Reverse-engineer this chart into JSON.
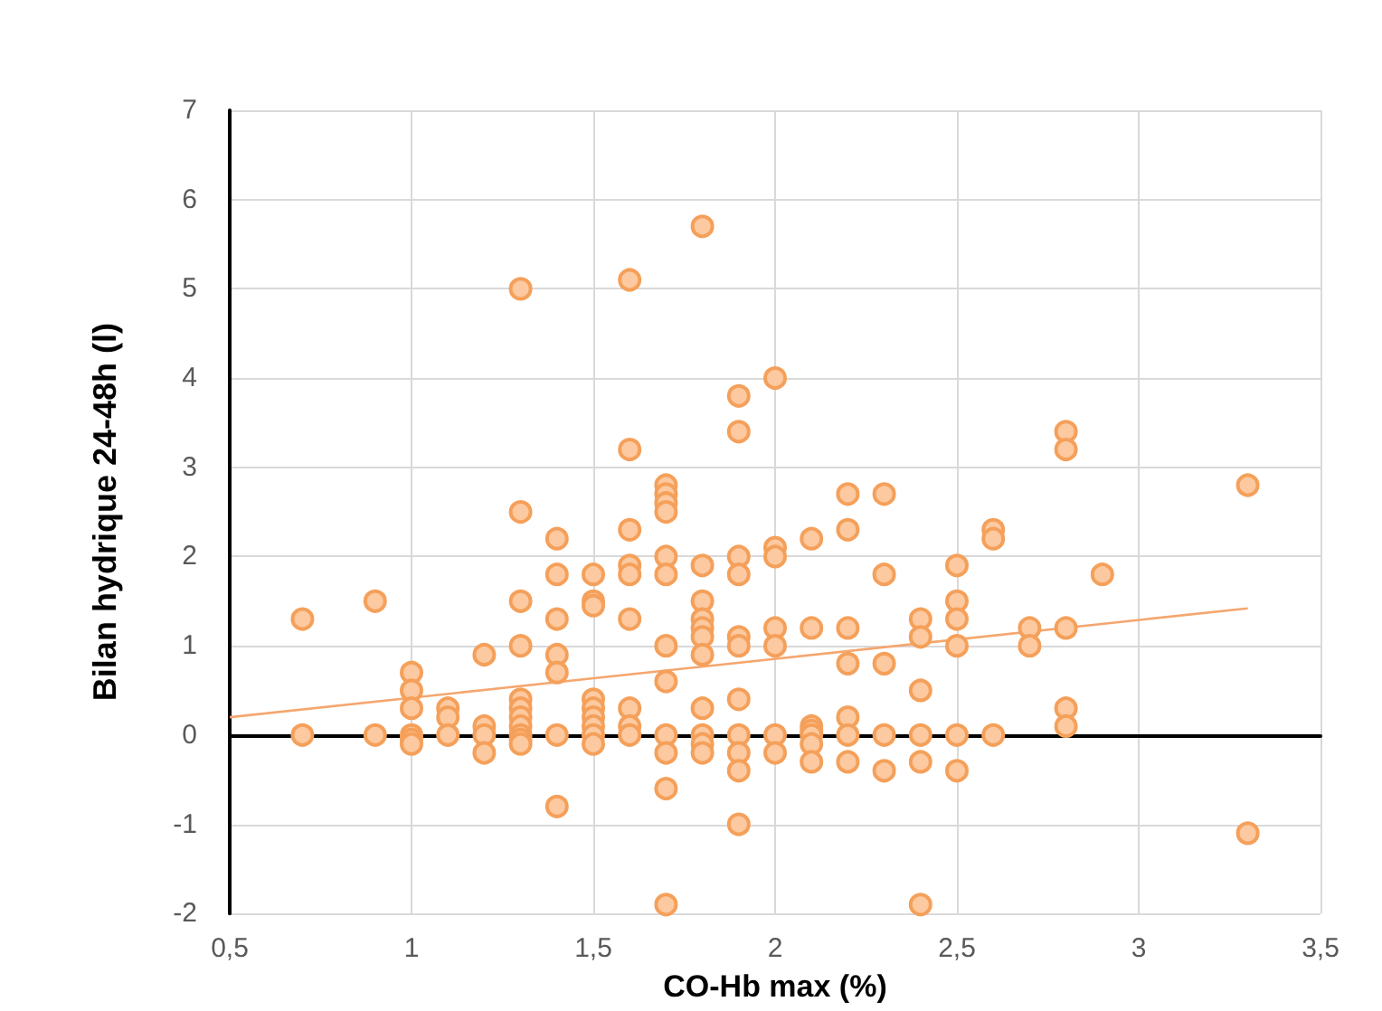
{
  "chart_data": {
    "type": "scatter",
    "xlabel": "CO-Hb max (%)",
    "ylabel": "Bilan hydrique 24-48h (l)",
    "xlim": [
      0.5,
      3.5
    ],
    "ylim": [
      -2,
      7
    ],
    "xticks": [
      {
        "value": 0.5,
        "label": "0,5"
      },
      1,
      {
        "value": 1.5,
        "label": "1,5"
      },
      2,
      {
        "value": 2.5,
        "label": "2,5"
      },
      3,
      {
        "value": 3.5,
        "label": "3,5"
      }
    ],
    "yticks": [
      -2,
      -1,
      0,
      1,
      2,
      3,
      4,
      5,
      6,
      7
    ],
    "grid": true,
    "marker": "circle",
    "series": [
      {
        "color": "#f5a05a",
        "x": [
          0.7,
          0.7,
          0.9,
          0.9,
          1.0,
          1.0,
          1.0,
          1.0,
          1.0,
          1.0,
          1.1,
          1.1,
          1.1,
          1.2,
          1.2,
          1.2,
          1.2,
          1.3,
          1.3,
          1.3,
          1.3,
          1.3,
          1.3,
          1.3,
          1.3,
          1.3,
          1.3,
          1.3,
          1.4,
          1.4,
          1.4,
          1.4,
          1.4,
          1.4,
          1.4,
          1.5,
          1.5,
          1.5,
          1.5,
          1.5,
          1.5,
          1.5,
          1.5,
          1.5,
          1.6,
          1.6,
          1.6,
          1.6,
          1.6,
          1.6,
          1.6,
          1.6,
          1.6,
          1.7,
          1.7,
          1.7,
          1.7,
          1.7,
          1.7,
          1.7,
          1.7,
          1.7,
          1.7,
          1.7,
          1.7,
          1.8,
          1.8,
          1.8,
          1.8,
          1.8,
          1.8,
          1.8,
          1.8,
          1.8,
          1.8,
          1.8,
          1.9,
          1.9,
          1.9,
          1.9,
          1.9,
          1.9,
          1.9,
          1.9,
          1.9,
          1.9,
          1.9,
          2.0,
          2.0,
          2.0,
          2.0,
          2.0,
          2.0,
          2.0,
          2.1,
          2.1,
          2.1,
          2.1,
          2.1,
          2.1,
          2.1,
          2.2,
          2.2,
          2.2,
          2.2,
          2.2,
          2.2,
          2.2,
          2.3,
          2.3,
          2.3,
          2.3,
          2.3,
          2.4,
          2.4,
          2.4,
          2.4,
          2.4,
          2.4,
          2.5,
          2.5,
          2.5,
          2.5,
          2.5,
          2.5,
          2.6,
          2.6,
          2.6,
          2.7,
          2.7,
          2.8,
          2.8,
          2.8,
          2.8,
          2.8,
          2.9,
          3.3,
          3.3
        ],
        "values": [
          1.3,
          0,
          1.5,
          0,
          0.7,
          0.5,
          0.3,
          0,
          -0.05,
          -0.1,
          0.3,
          0.2,
          0,
          0.9,
          0.1,
          0,
          -0.2,
          5.0,
          2.5,
          1.5,
          1.0,
          0.4,
          0.3,
          0.2,
          0.1,
          0,
          -0.05,
          -0.1,
          2.2,
          1.8,
          1.3,
          0.9,
          0.7,
          0,
          -0.8,
          1.8,
          1.5,
          1.45,
          0.4,
          0.3,
          0.2,
          0.1,
          0,
          -0.1,
          5.1,
          3.2,
          2.3,
          1.9,
          1.8,
          1.3,
          0.3,
          0.1,
          0,
          2.8,
          2.7,
          2.6,
          2.5,
          2.0,
          1.8,
          1.0,
          0.6,
          0,
          -0.2,
          -0.6,
          -1.9,
          5.7,
          1.9,
          1.5,
          1.3,
          1.2,
          1.1,
          0.9,
          0.3,
          0,
          -0.1,
          -0.2,
          3.8,
          3.4,
          2.0,
          1.8,
          1.1,
          1.0,
          0.4,
          0,
          -0.2,
          -0.4,
          -1.0,
          4.0,
          2.1,
          2.0,
          1.2,
          1.0,
          0,
          -0.2,
          2.2,
          1.2,
          0.1,
          0.05,
          0,
          -0.1,
          -0.3,
          2.7,
          2.3,
          1.2,
          0.8,
          0.2,
          0,
          -0.3,
          2.7,
          1.8,
          0.8,
          0,
          -0.4,
          1.3,
          1.1,
          0.5,
          0,
          -0.3,
          -1.9,
          1.9,
          1.5,
          1.3,
          1.0,
          0,
          -0.4,
          2.3,
          2.2,
          0,
          1.2,
          1.0,
          3.4,
          3.2,
          1.2,
          0.3,
          0.1,
          1.8,
          2.8,
          -1.1
        ]
      },
      {
        "type": "line",
        "color": "#f5a66e",
        "marker": "none",
        "x": [
          0.5,
          3.3
        ],
        "values": [
          0.2,
          1.42
        ]
      }
    ]
  }
}
